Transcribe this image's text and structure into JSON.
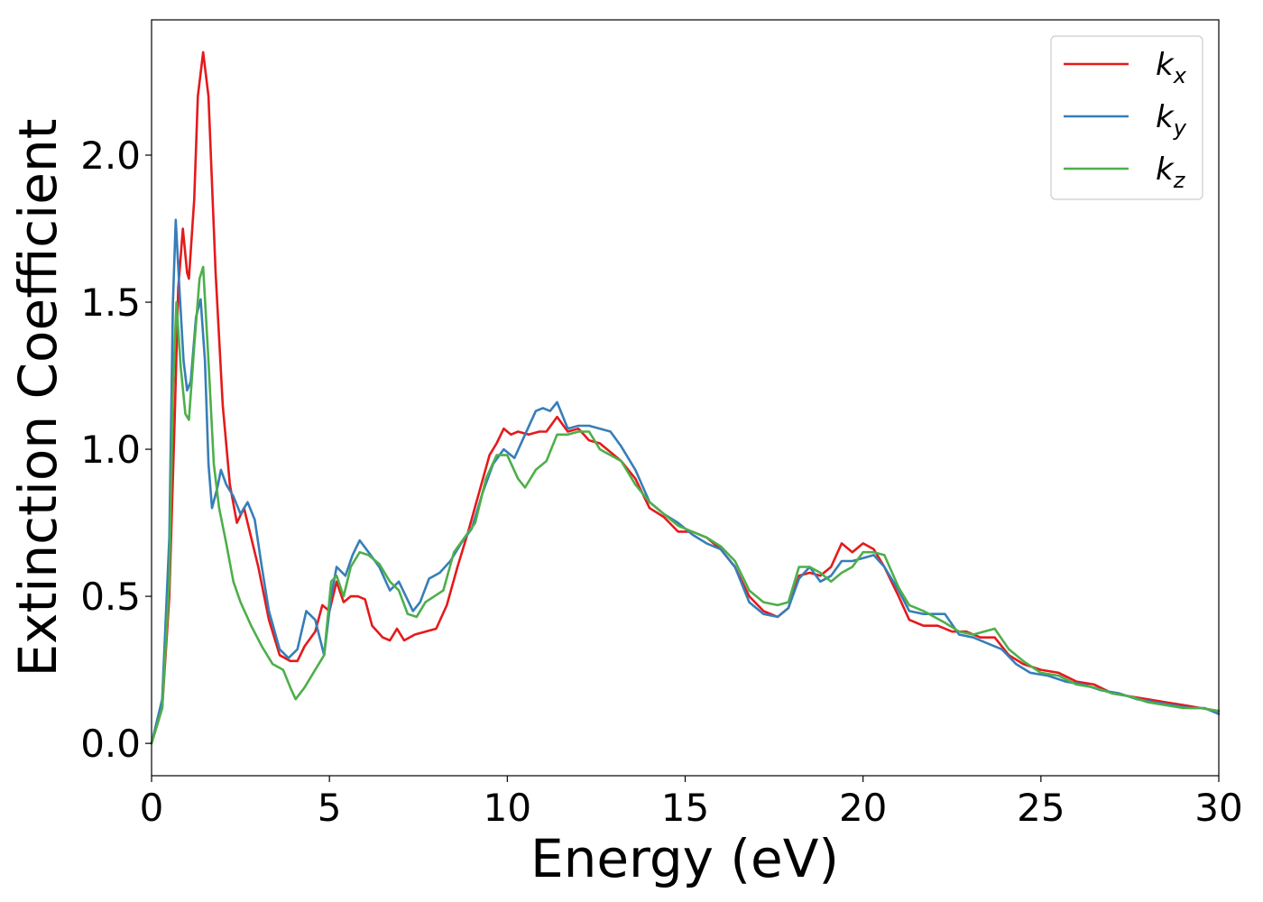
{
  "chart_data": {
    "type": "line",
    "title": "",
    "xlabel": "Energy (eV)",
    "ylabel": "Extinction Coefficient",
    "xlim": [
      0,
      30
    ],
    "ylim": [
      -0.11,
      2.46
    ],
    "xticks": [
      0,
      5,
      10,
      15,
      20,
      25,
      30
    ],
    "yticks": [
      0.0,
      0.5,
      1.0,
      1.5,
      2.0
    ],
    "xtick_labels": [
      "0",
      "5",
      "10",
      "15",
      "20",
      "25",
      "30"
    ],
    "ytick_labels": [
      "0.0",
      "0.5",
      "1.0",
      "1.5",
      "2.0"
    ],
    "grid": false,
    "legend_position": "top-right",
    "series": [
      {
        "name": "k_x",
        "label_main": "k",
        "label_sub": "x",
        "color": "#e41a1c",
        "points": [
          [
            0,
            0.0
          ],
          [
            0.3,
            0.12
          ],
          [
            0.5,
            0.5
          ],
          [
            0.65,
            1.1
          ],
          [
            0.75,
            1.55
          ],
          [
            0.88,
            1.75
          ],
          [
            1.0,
            1.6
          ],
          [
            1.05,
            1.58
          ],
          [
            1.2,
            1.85
          ],
          [
            1.3,
            2.2
          ],
          [
            1.45,
            2.35
          ],
          [
            1.6,
            2.2
          ],
          [
            1.8,
            1.6
          ],
          [
            2.0,
            1.15
          ],
          [
            2.2,
            0.88
          ],
          [
            2.4,
            0.75
          ],
          [
            2.6,
            0.8
          ],
          [
            2.8,
            0.7
          ],
          [
            3.0,
            0.6
          ],
          [
            3.3,
            0.42
          ],
          [
            3.6,
            0.3
          ],
          [
            3.9,
            0.28
          ],
          [
            4.1,
            0.28
          ],
          [
            4.3,
            0.33
          ],
          [
            4.6,
            0.38
          ],
          [
            4.8,
            0.47
          ],
          [
            5.0,
            0.45
          ],
          [
            5.2,
            0.55
          ],
          [
            5.4,
            0.48
          ],
          [
            5.6,
            0.5
          ],
          [
            5.8,
            0.5
          ],
          [
            6.0,
            0.49
          ],
          [
            6.2,
            0.4
          ],
          [
            6.5,
            0.36
          ],
          [
            6.7,
            0.35
          ],
          [
            6.9,
            0.39
          ],
          [
            7.1,
            0.35
          ],
          [
            7.4,
            0.37
          ],
          [
            7.7,
            0.38
          ],
          [
            8.0,
            0.39
          ],
          [
            8.3,
            0.47
          ],
          [
            8.6,
            0.6
          ],
          [
            8.9,
            0.72
          ],
          [
            9.2,
            0.85
          ],
          [
            9.5,
            0.98
          ],
          [
            9.7,
            1.02
          ],
          [
            9.9,
            1.07
          ],
          [
            10.1,
            1.05
          ],
          [
            10.3,
            1.06
          ],
          [
            10.6,
            1.05
          ],
          [
            10.9,
            1.06
          ],
          [
            11.1,
            1.06
          ],
          [
            11.4,
            1.11
          ],
          [
            11.7,
            1.06
          ],
          [
            12.0,
            1.07
          ],
          [
            12.3,
            1.03
          ],
          [
            12.6,
            1.02
          ],
          [
            12.9,
            0.99
          ],
          [
            13.2,
            0.96
          ],
          [
            13.6,
            0.9
          ],
          [
            14.0,
            0.8
          ],
          [
            14.4,
            0.77
          ],
          [
            14.8,
            0.72
          ],
          [
            15.2,
            0.72
          ],
          [
            15.6,
            0.7
          ],
          [
            16.0,
            0.66
          ],
          [
            16.4,
            0.6
          ],
          [
            16.8,
            0.5
          ],
          [
            17.2,
            0.45
          ],
          [
            17.6,
            0.43
          ],
          [
            17.9,
            0.46
          ],
          [
            18.2,
            0.57
          ],
          [
            18.5,
            0.58
          ],
          [
            18.8,
            0.57
          ],
          [
            19.1,
            0.6
          ],
          [
            19.4,
            0.68
          ],
          [
            19.7,
            0.65
          ],
          [
            20.0,
            0.68
          ],
          [
            20.3,
            0.66
          ],
          [
            20.6,
            0.6
          ],
          [
            21.0,
            0.5
          ],
          [
            21.3,
            0.42
          ],
          [
            21.7,
            0.4
          ],
          [
            22.1,
            0.4
          ],
          [
            22.5,
            0.38
          ],
          [
            22.9,
            0.38
          ],
          [
            23.3,
            0.36
          ],
          [
            23.7,
            0.36
          ],
          [
            24.1,
            0.3
          ],
          [
            24.5,
            0.27
          ],
          [
            25.0,
            0.25
          ],
          [
            25.5,
            0.24
          ],
          [
            26.0,
            0.21
          ],
          [
            26.5,
            0.2
          ],
          [
            27.0,
            0.17
          ],
          [
            27.5,
            0.16
          ],
          [
            28.0,
            0.15
          ],
          [
            28.5,
            0.14
          ],
          [
            29.0,
            0.13
          ],
          [
            29.5,
            0.12
          ],
          [
            30.0,
            0.11
          ]
        ]
      },
      {
        "name": "k_y",
        "label_main": "k",
        "label_sub": "y",
        "color": "#377eb8",
        "points": [
          [
            0,
            0.0
          ],
          [
            0.3,
            0.15
          ],
          [
            0.5,
            0.7
          ],
          [
            0.6,
            1.5
          ],
          [
            0.68,
            1.78
          ],
          [
            0.78,
            1.55
          ],
          [
            0.9,
            1.3
          ],
          [
            1.0,
            1.2
          ],
          [
            1.1,
            1.23
          ],
          [
            1.25,
            1.45
          ],
          [
            1.38,
            1.51
          ],
          [
            1.5,
            1.3
          ],
          [
            1.6,
            0.95
          ],
          [
            1.7,
            0.8
          ],
          [
            1.85,
            0.87
          ],
          [
            1.95,
            0.93
          ],
          [
            2.1,
            0.88
          ],
          [
            2.3,
            0.84
          ],
          [
            2.5,
            0.78
          ],
          [
            2.7,
            0.82
          ],
          [
            2.9,
            0.76
          ],
          [
            3.1,
            0.6
          ],
          [
            3.3,
            0.45
          ],
          [
            3.6,
            0.32
          ],
          [
            3.85,
            0.29
          ],
          [
            4.1,
            0.32
          ],
          [
            4.35,
            0.45
          ],
          [
            4.6,
            0.42
          ],
          [
            4.85,
            0.3
          ],
          [
            5.05,
            0.5
          ],
          [
            5.2,
            0.6
          ],
          [
            5.45,
            0.57
          ],
          [
            5.65,
            0.64
          ],
          [
            5.85,
            0.69
          ],
          [
            6.1,
            0.65
          ],
          [
            6.4,
            0.6
          ],
          [
            6.7,
            0.52
          ],
          [
            6.95,
            0.55
          ],
          [
            7.15,
            0.5
          ],
          [
            7.35,
            0.45
          ],
          [
            7.55,
            0.48
          ],
          [
            7.8,
            0.56
          ],
          [
            8.1,
            0.58
          ],
          [
            8.4,
            0.62
          ],
          [
            8.7,
            0.68
          ],
          [
            9.0,
            0.73
          ],
          [
            9.3,
            0.85
          ],
          [
            9.6,
            0.95
          ],
          [
            9.9,
            1.0
          ],
          [
            10.2,
            0.97
          ],
          [
            10.5,
            1.05
          ],
          [
            10.8,
            1.13
          ],
          [
            11.0,
            1.14
          ],
          [
            11.2,
            1.13
          ],
          [
            11.4,
            1.16
          ],
          [
            11.7,
            1.07
          ],
          [
            12.0,
            1.08
          ],
          [
            12.3,
            1.08
          ],
          [
            12.6,
            1.07
          ],
          [
            12.9,
            1.06
          ],
          [
            13.2,
            1.01
          ],
          [
            13.6,
            0.93
          ],
          [
            14.0,
            0.82
          ],
          [
            14.4,
            0.78
          ],
          [
            14.8,
            0.75
          ],
          [
            15.2,
            0.71
          ],
          [
            15.6,
            0.68
          ],
          [
            16.0,
            0.66
          ],
          [
            16.4,
            0.6
          ],
          [
            16.8,
            0.48
          ],
          [
            17.2,
            0.44
          ],
          [
            17.6,
            0.43
          ],
          [
            17.9,
            0.46
          ],
          [
            18.2,
            0.56
          ],
          [
            18.5,
            0.6
          ],
          [
            18.8,
            0.55
          ],
          [
            19.1,
            0.57
          ],
          [
            19.4,
            0.62
          ],
          [
            19.7,
            0.62
          ],
          [
            20.0,
            0.63
          ],
          [
            20.3,
            0.64
          ],
          [
            20.6,
            0.6
          ],
          [
            21.0,
            0.52
          ],
          [
            21.3,
            0.45
          ],
          [
            21.7,
            0.44
          ],
          [
            22.0,
            0.44
          ],
          [
            22.3,
            0.44
          ],
          [
            22.7,
            0.37
          ],
          [
            23.1,
            0.36
          ],
          [
            23.5,
            0.34
          ],
          [
            23.9,
            0.32
          ],
          [
            24.3,
            0.27
          ],
          [
            24.7,
            0.24
          ],
          [
            25.2,
            0.23
          ],
          [
            25.7,
            0.21
          ],
          [
            26.2,
            0.2
          ],
          [
            26.7,
            0.18
          ],
          [
            27.2,
            0.17
          ],
          [
            27.7,
            0.15
          ],
          [
            28.2,
            0.14
          ],
          [
            28.7,
            0.13
          ],
          [
            29.2,
            0.12
          ],
          [
            29.6,
            0.12
          ],
          [
            30.0,
            0.1
          ]
        ]
      },
      {
        "name": "k_z",
        "label_main": "k",
        "label_sub": "z",
        "color": "#4daf4a",
        "points": [
          [
            0,
            0.0
          ],
          [
            0.3,
            0.12
          ],
          [
            0.5,
            0.55
          ],
          [
            0.6,
            1.2
          ],
          [
            0.7,
            1.5
          ],
          [
            0.82,
            1.28
          ],
          [
            0.95,
            1.12
          ],
          [
            1.05,
            1.1
          ],
          [
            1.2,
            1.35
          ],
          [
            1.35,
            1.58
          ],
          [
            1.45,
            1.62
          ],
          [
            1.6,
            1.3
          ],
          [
            1.75,
            0.95
          ],
          [
            1.9,
            0.8
          ],
          [
            2.1,
            0.68
          ],
          [
            2.3,
            0.55
          ],
          [
            2.5,
            0.48
          ],
          [
            2.8,
            0.4
          ],
          [
            3.1,
            0.33
          ],
          [
            3.4,
            0.27
          ],
          [
            3.7,
            0.25
          ],
          [
            3.9,
            0.19
          ],
          [
            4.05,
            0.15
          ],
          [
            4.3,
            0.19
          ],
          [
            4.6,
            0.25
          ],
          [
            4.85,
            0.3
          ],
          [
            5.05,
            0.55
          ],
          [
            5.2,
            0.57
          ],
          [
            5.4,
            0.5
          ],
          [
            5.6,
            0.6
          ],
          [
            5.85,
            0.65
          ],
          [
            6.1,
            0.64
          ],
          [
            6.4,
            0.61
          ],
          [
            6.7,
            0.55
          ],
          [
            6.95,
            0.52
          ],
          [
            7.2,
            0.44
          ],
          [
            7.45,
            0.43
          ],
          [
            7.7,
            0.48
          ],
          [
            7.95,
            0.5
          ],
          [
            8.2,
            0.52
          ],
          [
            8.5,
            0.65
          ],
          [
            8.8,
            0.7
          ],
          [
            9.1,
            0.75
          ],
          [
            9.4,
            0.9
          ],
          [
            9.7,
            0.98
          ],
          [
            10.0,
            0.98
          ],
          [
            10.3,
            0.9
          ],
          [
            10.5,
            0.87
          ],
          [
            10.8,
            0.93
          ],
          [
            11.1,
            0.96
          ],
          [
            11.4,
            1.05
          ],
          [
            11.7,
            1.05
          ],
          [
            12.0,
            1.06
          ],
          [
            12.3,
            1.06
          ],
          [
            12.6,
            1.0
          ],
          [
            12.9,
            0.98
          ],
          [
            13.2,
            0.96
          ],
          [
            13.6,
            0.88
          ],
          [
            14.0,
            0.82
          ],
          [
            14.4,
            0.78
          ],
          [
            14.8,
            0.74
          ],
          [
            15.2,
            0.72
          ],
          [
            15.6,
            0.7
          ],
          [
            16.0,
            0.67
          ],
          [
            16.4,
            0.62
          ],
          [
            16.8,
            0.52
          ],
          [
            17.2,
            0.48
          ],
          [
            17.6,
            0.47
          ],
          [
            17.9,
            0.48
          ],
          [
            18.2,
            0.6
          ],
          [
            18.5,
            0.6
          ],
          [
            18.8,
            0.58
          ],
          [
            19.1,
            0.55
          ],
          [
            19.4,
            0.58
          ],
          [
            19.7,
            0.6
          ],
          [
            20.0,
            0.65
          ],
          [
            20.3,
            0.65
          ],
          [
            20.6,
            0.64
          ],
          [
            21.0,
            0.53
          ],
          [
            21.3,
            0.47
          ],
          [
            21.7,
            0.45
          ],
          [
            22.0,
            0.43
          ],
          [
            22.3,
            0.41
          ],
          [
            22.7,
            0.38
          ],
          [
            23.1,
            0.37
          ],
          [
            23.4,
            0.38
          ],
          [
            23.7,
            0.39
          ],
          [
            24.1,
            0.32
          ],
          [
            24.5,
            0.28
          ],
          [
            25.0,
            0.24
          ],
          [
            25.5,
            0.23
          ],
          [
            26.0,
            0.2
          ],
          [
            26.5,
            0.19
          ],
          [
            27.0,
            0.17
          ],
          [
            27.5,
            0.16
          ],
          [
            28.0,
            0.14
          ],
          [
            28.5,
            0.13
          ],
          [
            29.0,
            0.12
          ],
          [
            29.5,
            0.12
          ],
          [
            30.0,
            0.11
          ]
        ]
      }
    ]
  }
}
